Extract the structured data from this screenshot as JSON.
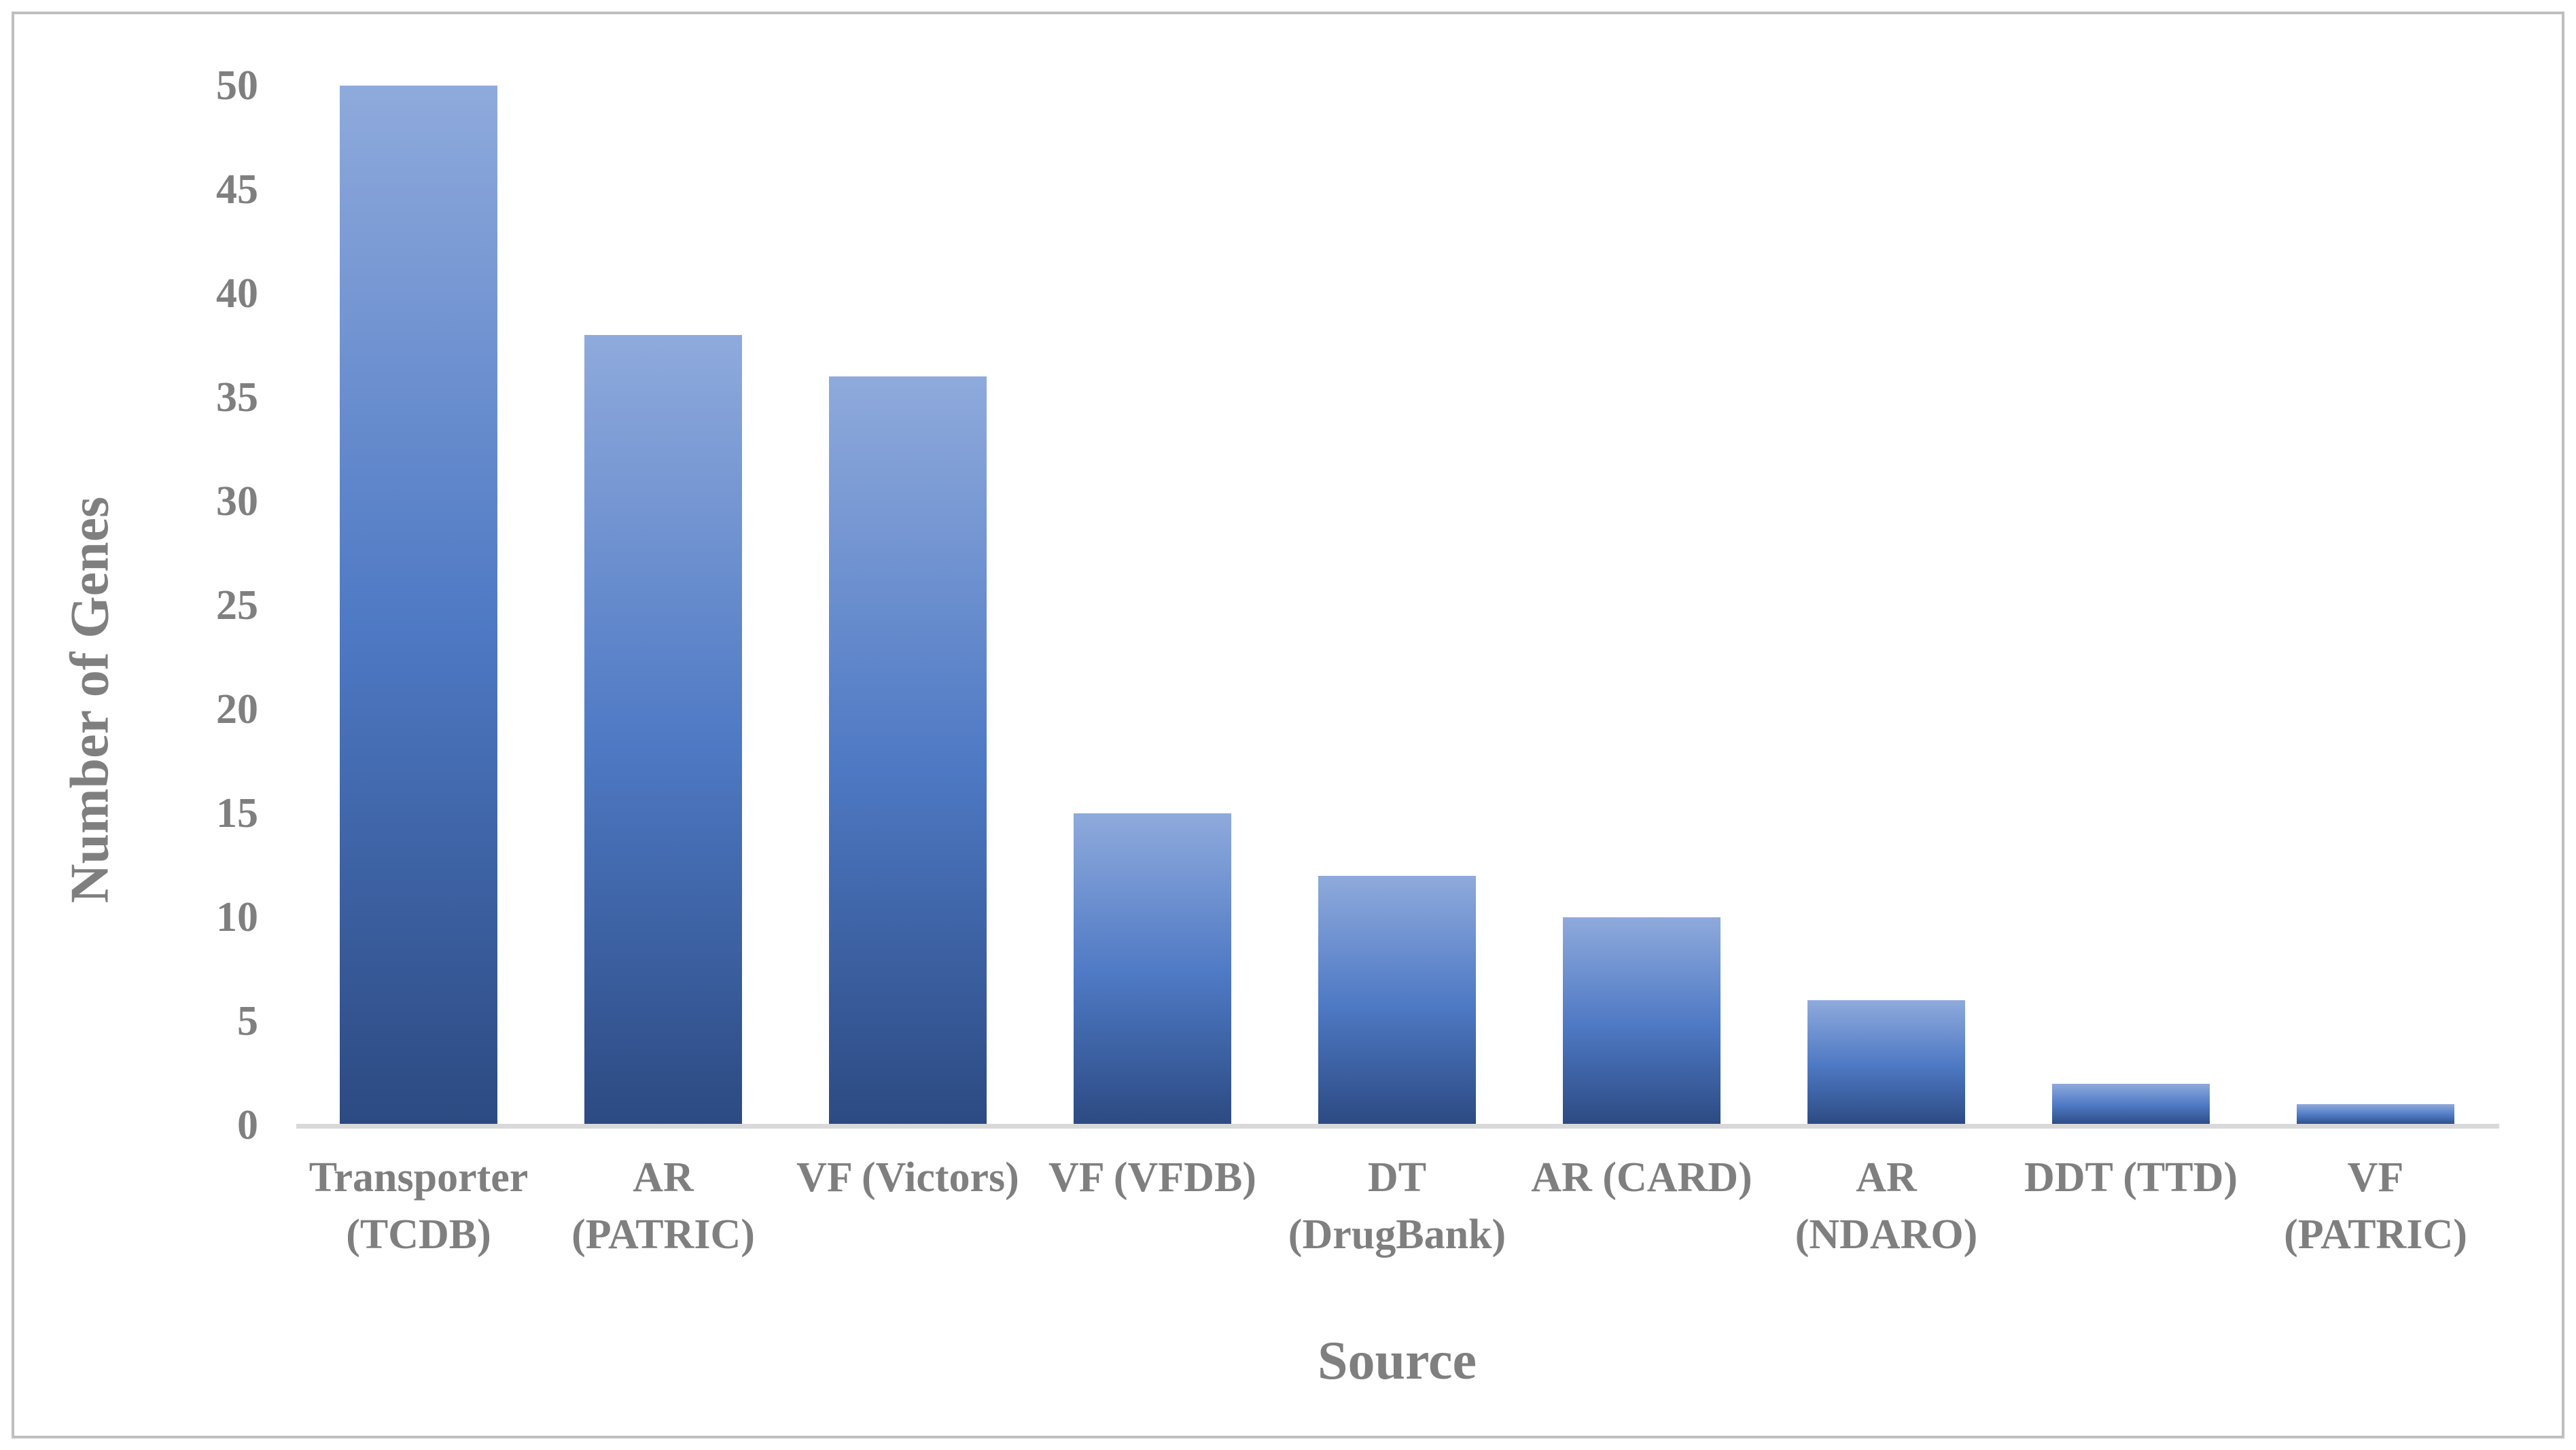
{
  "chart_data": {
    "type": "bar",
    "title": "",
    "xlabel": "Source",
    "ylabel": "Number of Genes",
    "categories": [
      [
        "Transporter",
        "(TCDB)"
      ],
      [
        "AR",
        "(PATRIC)"
      ],
      [
        "VF (Victors)"
      ],
      [
        "VF (VFDB)"
      ],
      [
        "DT",
        "(DrugBank)"
      ],
      [
        "AR (CARD)"
      ],
      [
        "AR",
        "(NDARO)"
      ],
      [
        "DDT (TTD)"
      ],
      [
        "VF",
        "(PATRIC)"
      ]
    ],
    "values": [
      50,
      38,
      36,
      15,
      12,
      10,
      6,
      2,
      1
    ],
    "yticks": [
      0,
      5,
      10,
      15,
      20,
      25,
      30,
      35,
      40,
      45,
      50
    ],
    "ylim": [
      0,
      50
    ],
    "grid": false,
    "legend": "none",
    "colors": {
      "bar_gradient_top": "#8FAADC",
      "bar_gradient_mid": "#4E79C4",
      "bar_gradient_bottom": "#2C4A82",
      "axis_line": "#D9D9D9",
      "text": "#7F7F7F",
      "frame_border": "#BFBFBF",
      "background": "#FFFFFF"
    }
  }
}
